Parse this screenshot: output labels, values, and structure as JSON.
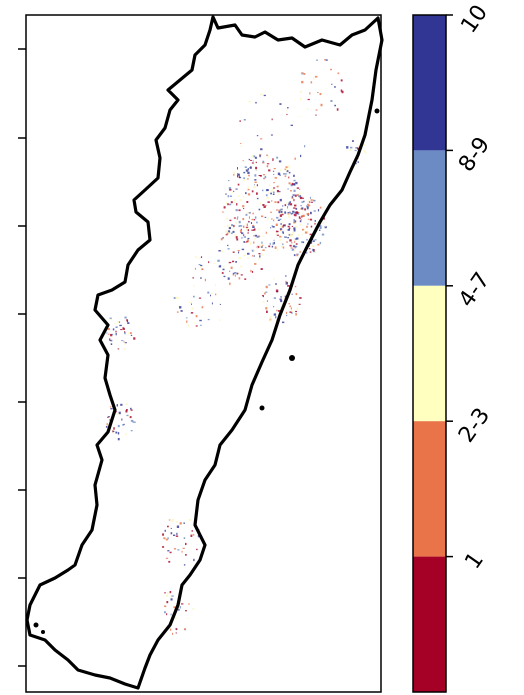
{
  "map": {
    "region_outline_color": "#000000",
    "frame_color": "#000000",
    "background": "#ffffff"
  },
  "scatter_palette": [
    "#a50026",
    "#e9744a",
    "#fbf6bd",
    "#6c8bc5",
    "#313695"
  ],
  "colorbar": {
    "categories": [
      {
        "label": "10",
        "color": "#313695"
      },
      {
        "label": "8-9",
        "color": "#6c8bc5"
      },
      {
        "label": "4-7",
        "color": "#ffffc0"
      },
      {
        "label": "2-3",
        "color": "#e9744a"
      },
      {
        "label": "1",
        "color": "#a50026"
      }
    ]
  }
}
